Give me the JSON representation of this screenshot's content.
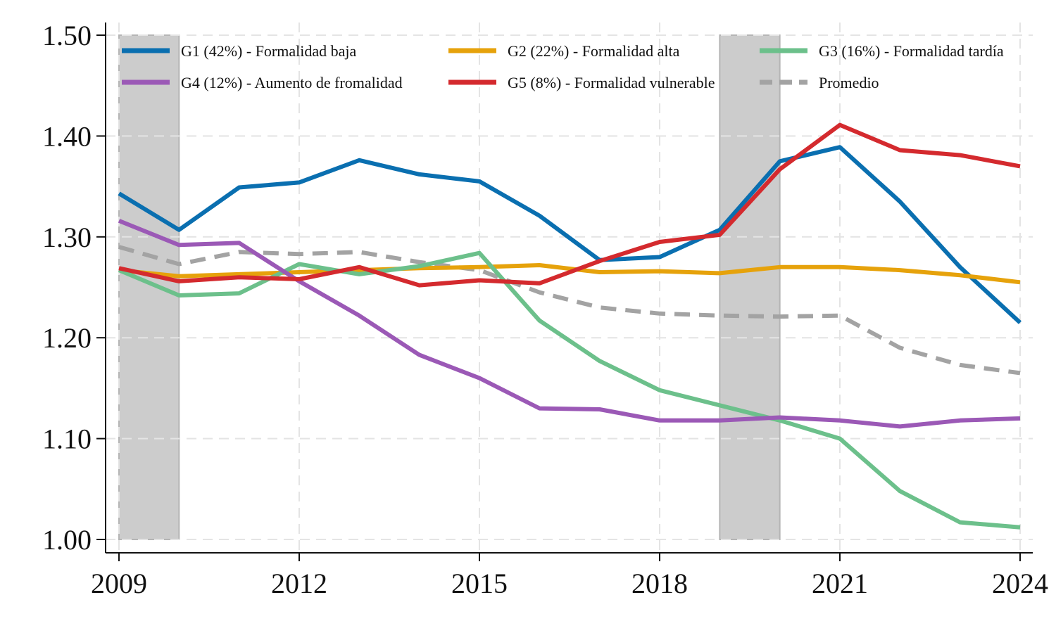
{
  "chart_data": {
    "type": "line",
    "title": "",
    "xlabel": "",
    "ylabel": "",
    "x": [
      2009,
      2010,
      2011,
      2012,
      2013,
      2014,
      2015,
      2016,
      2017,
      2018,
      2019,
      2020,
      2021,
      2022,
      2023,
      2024
    ],
    "xlim": [
      2009,
      2024
    ],
    "ylim": [
      1.0,
      1.5
    ],
    "x_ticks": [
      {
        "value": 2009,
        "label": "2009"
      },
      {
        "value": 2012,
        "label": "2012"
      },
      {
        "value": 2015,
        "label": "2015"
      },
      {
        "value": 2018,
        "label": "2018"
      },
      {
        "value": 2021,
        "label": "2021"
      },
      {
        "value": 2024,
        "label": "2024"
      }
    ],
    "y_ticks": [
      {
        "value": 1.0,
        "label": "1.00"
      },
      {
        "value": 1.1,
        "label": "1.10"
      },
      {
        "value": 1.2,
        "label": "1.20"
      },
      {
        "value": 1.3,
        "label": "1.30"
      },
      {
        "value": 1.4,
        "label": "1.40"
      },
      {
        "value": 1.5,
        "label": "1.50"
      }
    ],
    "grid": true,
    "legend_position": "top",
    "shaded_periods": [
      {
        "from": 2009,
        "to": 2010
      },
      {
        "from": 2019,
        "to": 2020
      }
    ],
    "series": [
      {
        "name": "G1 (42%) - Formalidad baja",
        "color": "#0a6fb0",
        "dashed": false,
        "values": [
          1.343,
          1.307,
          1.349,
          1.354,
          1.376,
          1.362,
          1.355,
          1.321,
          1.277,
          1.28,
          1.307,
          1.375,
          1.389,
          1.335,
          1.27,
          1.215
        ]
      },
      {
        "name": "G2 (22%) - Formalidad alta",
        "color": "#e6a20b",
        "dashed": false,
        "values": [
          1.267,
          1.261,
          1.263,
          1.265,
          1.267,
          1.269,
          1.27,
          1.272,
          1.265,
          1.266,
          1.264,
          1.27,
          1.27,
          1.267,
          1.262,
          1.255
        ]
      },
      {
        "name": "G3 (16%) - Formalidad tardía",
        "color": "#6cc08b",
        "dashed": false,
        "values": [
          1.267,
          1.242,
          1.244,
          1.273,
          1.263,
          1.271,
          1.284,
          1.217,
          1.177,
          1.148,
          1.133,
          1.118,
          1.1,
          1.048,
          1.017,
          1.012
        ]
      },
      {
        "name": "G4 (12%) - Aumento de fromalidad",
        "color": "#9b59b6",
        "dashed": false,
        "values": [
          1.316,
          1.292,
          1.294,
          1.256,
          1.222,
          1.183,
          1.16,
          1.13,
          1.129,
          1.118,
          1.118,
          1.121,
          1.118,
          1.112,
          1.118,
          1.12
        ]
      },
      {
        "name": "G5 (8%) - Formalidad vulnerable",
        "color": "#d42a2e",
        "dashed": false,
        "values": [
          1.269,
          1.256,
          1.26,
          1.258,
          1.27,
          1.252,
          1.257,
          1.254,
          1.276,
          1.295,
          1.302,
          1.367,
          1.411,
          1.386,
          1.381,
          1.37
        ]
      },
      {
        "name": "Promedio",
        "color": "#a3a3a3",
        "dashed": true,
        "values": [
          1.29,
          1.273,
          1.285,
          1.283,
          1.285,
          1.275,
          1.267,
          1.245,
          1.23,
          1.224,
          1.222,
          1.221,
          1.222,
          1.19,
          1.173,
          1.165
        ]
      }
    ]
  }
}
